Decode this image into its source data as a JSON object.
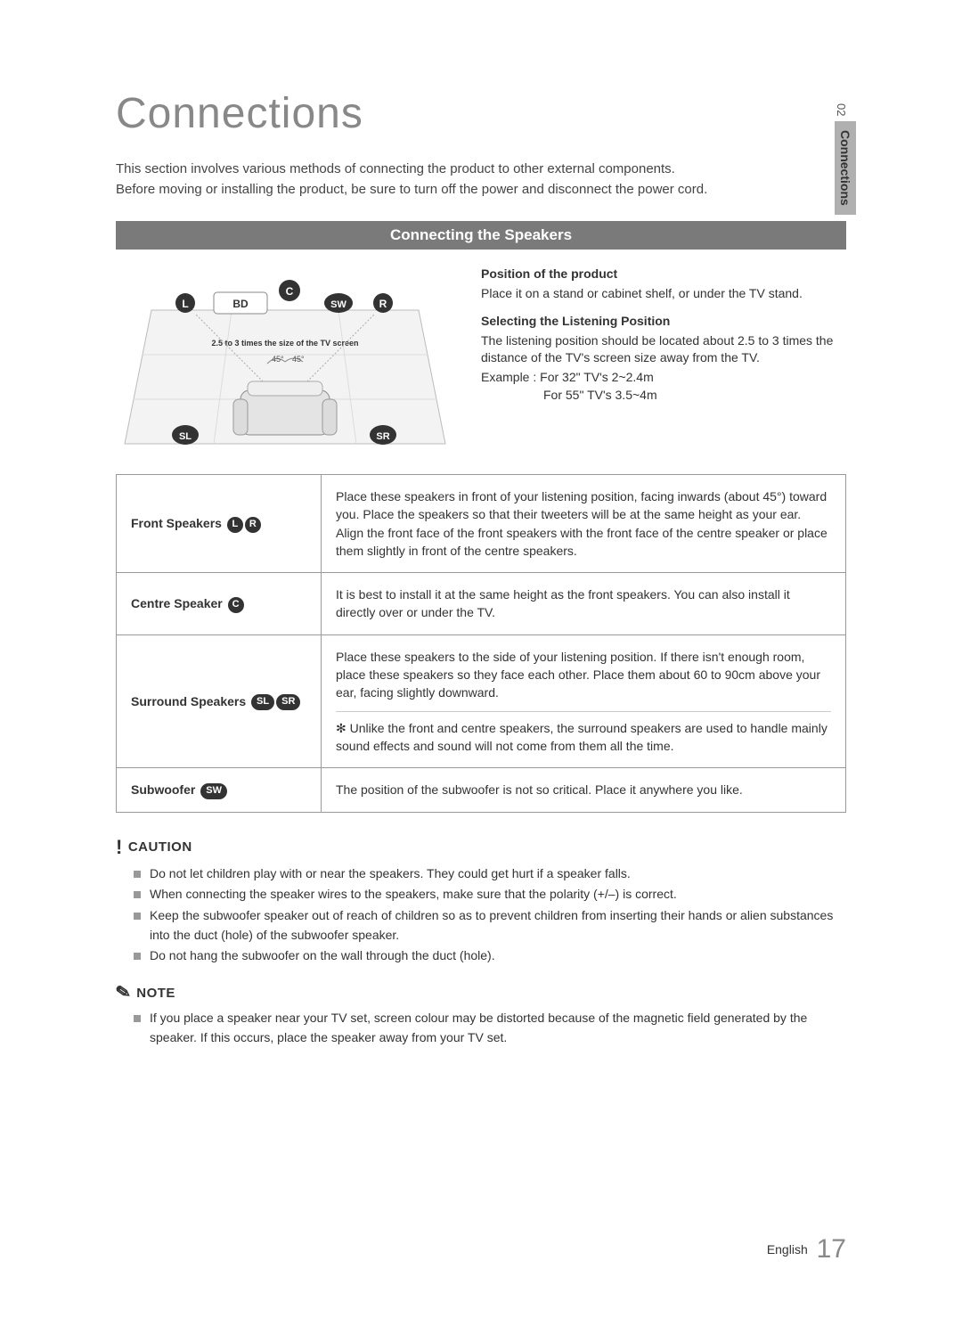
{
  "side": {
    "num": "02",
    "label": "Connections"
  },
  "heading": "Connections",
  "intro": "This section involves various methods of connecting the product to other external components.\nBefore moving or installing the product, be sure to turn off the power and disconnect the power cord.",
  "section_bar": "Connecting the Speakers",
  "diagram": {
    "labels": {
      "L": "L",
      "BD": "BD",
      "C": "C",
      "SW": "SW",
      "R": "R",
      "SL": "SL",
      "SR": "SR"
    },
    "caption": "2.5 to 3 times the size of the TV screen",
    "angles": {
      "left": "45°",
      "right": "45°"
    },
    "colors": {
      "badge_bg": "#333333",
      "badge_fg": "#ffffff",
      "sofa_fill": "#e4e4e4",
      "sofa_stroke": "#888888",
      "floor1": "#f3f3f3",
      "floor2": "#e6e6e6"
    }
  },
  "info": {
    "pos_h": "Position of the product",
    "pos_p": "Place it on a stand or cabinet shelf, or under the TV stand.",
    "sel_h": "Selecting the Listening Position",
    "sel_p": "The listening position should be located about 2.5 to 3 times the distance of the TV's screen size away from the TV.",
    "sel_ex1": "Example : For 32\" TV's 2~2.4m",
    "sel_ex2": "For 55\" TV's 3.5~4m"
  },
  "table": {
    "rows": [
      {
        "head": "Front Speakers",
        "badges": [
          "L",
          "R"
        ],
        "badge_style": "circle",
        "body": "Place these speakers in front of your listening position, facing inwards (about 45°) toward you. Place the speakers so that their tweeters will be at the same height as your ear. Align the front face of the front speakers with the front face of the centre speaker or place them slightly in front of the centre speakers."
      },
      {
        "head": "Centre Speaker",
        "badges": [
          "C"
        ],
        "badge_style": "circle",
        "body": "It is best to install it at the same height as the front speakers. You can also install it directly over or under the TV."
      },
      {
        "head": "Surround Speakers",
        "badges": [
          "SL",
          "SR"
        ],
        "badge_style": "pill",
        "body": "Place these speakers to the side of your listening position. If there isn't enough room, place these speakers so they face each other. Place them about 60 to 90cm above your ear, facing slightly downward.",
        "note": "Unlike the front and centre speakers, the surround speakers are used to handle mainly sound effects and sound will not come from them all the time."
      },
      {
        "head": "Subwoofer",
        "badges": [
          "SW"
        ],
        "badge_style": "pill",
        "body": "The position of the subwoofer is not so critical. Place it anywhere you like."
      }
    ]
  },
  "caution": {
    "label": "CAUTION",
    "items": [
      "Do not let children play with or near the speakers. They could get hurt if a speaker falls.",
      "When connecting the speaker wires to the speakers, make sure that the polarity (+/–) is correct.",
      "Keep the subwoofer speaker out of reach of children so as to prevent children from inserting their hands or alien substances into the duct (hole) of the subwoofer speaker.",
      "Do not hang the subwoofer on the wall through the duct (hole)."
    ]
  },
  "note": {
    "label": "NOTE",
    "items": [
      "If you place a speaker near your TV set, screen colour may be distorted because of the magnetic field generated by the speaker. If this occurs, place the speaker away from your TV set."
    ]
  },
  "footer": {
    "lang": "English",
    "page": "17"
  }
}
